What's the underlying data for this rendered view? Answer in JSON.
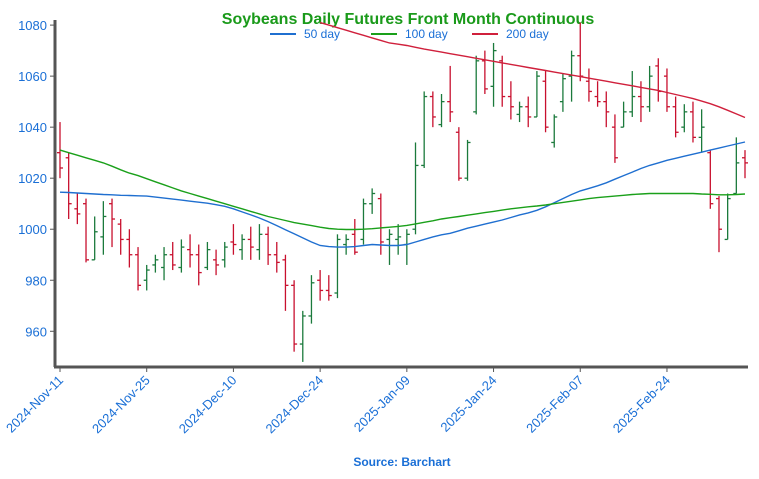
{
  "chart_data": {
    "type": "ohlc",
    "title": "Soybeans Daily Futures Front Month Continuous",
    "source": "Source: Barchart",
    "x": [
      "2024-Nov-11",
      "2024-Nov-12",
      "2024-Nov-13",
      "2024-Nov-14",
      "2024-Nov-15",
      "2024-Nov-18",
      "2024-Nov-19",
      "2024-Nov-20",
      "2024-Nov-21",
      "2024-Nov-22",
      "2024-Nov-25",
      "2024-Nov-26",
      "2024-Nov-27",
      "2024-Nov-29",
      "2024-Dec-02",
      "2024-Dec-03",
      "2024-Dec-04",
      "2024-Dec-05",
      "2024-Dec-06",
      "2024-Dec-09",
      "2024-Dec-10",
      "2024-Dec-11",
      "2024-Dec-12",
      "2024-Dec-13",
      "2024-Dec-16",
      "2024-Dec-17",
      "2024-Dec-18",
      "2024-Dec-19",
      "2024-Dec-20",
      "2024-Dec-23",
      "2024-Dec-24",
      "2024-Dec-26",
      "2024-Dec-27",
      "2024-Dec-30",
      "2024-Dec-31",
      "2025-Jan-02",
      "2025-Jan-03",
      "2025-Jan-06",
      "2025-Jan-07",
      "2025-Jan-08",
      "2025-Jan-09",
      "2025-Jan-10",
      "2025-Jan-13",
      "2025-Jan-14",
      "2025-Jan-15",
      "2025-Jan-16",
      "2025-Jan-17",
      "2025-Jan-21",
      "2025-Jan-22",
      "2025-Jan-23",
      "2025-Jan-24",
      "2025-Jan-27",
      "2025-Jan-28",
      "2025-Jan-29",
      "2025-Jan-30",
      "2025-Jan-31",
      "2025-Feb-03",
      "2025-Feb-04",
      "2025-Feb-05",
      "2025-Feb-06",
      "2025-Feb-07",
      "2025-Feb-10",
      "2025-Feb-11",
      "2025-Feb-12",
      "2025-Feb-13",
      "2025-Feb-14",
      "2025-Feb-18",
      "2025-Feb-19",
      "2025-Feb-20",
      "2025-Feb-21",
      "2025-Feb-24",
      "2025-Feb-25",
      "2025-Feb-26",
      "2025-Feb-27",
      "2025-Feb-28",
      "2025-Mar-03",
      "2025-Mar-04",
      "2025-Mar-05",
      "2025-Mar-06",
      "2025-Mar-07"
    ],
    "open": [
      1030,
      1028,
      1008,
      1010,
      988,
      997,
      1010,
      1002,
      996,
      990,
      980,
      986,
      985,
      990,
      985,
      992,
      990,
      985,
      988,
      988,
      995,
      992,
      996,
      992,
      998,
      990,
      988,
      978,
      955,
      966,
      980,
      976,
      975,
      994,
      998,
      996,
      1010,
      1012,
      996,
      996,
      994,
      1000,
      1025,
      1052,
      1041,
      1050,
      1038,
      1020,
      1046,
      1066,
      1056,
      1066,
      1052,
      1045,
      1048,
      1044,
      1058,
      1034,
      1050,
      1060,
      1068,
      1058,
      1052,
      1050,
      1040,
      1040,
      1046,
      1052,
      1048,
      1064,
      1060,
      1048,
      1040,
      1046,
      1036,
      1030,
      1012,
      996,
      1014,
      1028
    ],
    "high": [
      1042,
      1030,
      1014,
      1012,
      1005,
      1011,
      1012,
      1004,
      1000,
      993,
      986,
      990,
      993,
      995,
      996,
      998,
      994,
      995,
      992,
      995,
      1002,
      998,
      1001,
      1002,
      1001,
      995,
      990,
      980,
      968,
      982,
      984,
      982,
      998,
      998,
      1004,
      1012,
      1016,
      1014,
      1000,
      1002,
      1000,
      1034,
      1054,
      1054,
      1053,
      1064,
      1040,
      1035,
      1068,
      1070,
      1073,
      1068,
      1058,
      1050,
      1052,
      1062,
      1062,
      1045,
      1061,
      1070,
      1081,
      1063,
      1058,
      1054,
      1045,
      1050,
      1062,
      1058,
      1064,
      1067,
      1063,
      1052,
      1049,
      1050,
      1047,
      1031,
      1013,
      1014,
      1036,
      1031
    ],
    "low": [
      1020,
      1004,
      1002,
      987,
      988,
      990,
      993,
      990,
      985,
      976,
      976,
      983,
      980,
      984,
      983,
      985,
      978,
      984,
      982,
      985,
      990,
      988,
      988,
      988,
      986,
      983,
      968,
      952,
      948,
      963,
      972,
      972,
      973,
      990,
      990,
      994,
      1006,
      990,
      986,
      990,
      986,
      998,
      1024,
      1040,
      1040,
      1042,
      1019,
      1019,
      1045,
      1053,
      1048,
      1048,
      1043,
      1042,
      1040,
      1044,
      1038,
      1032,
      1046,
      1050,
      1058,
      1050,
      1048,
      1040,
      1026,
      1040,
      1044,
      1042,
      1046,
      1050,
      1046,
      1036,
      1038,
      1034,
      1030,
      1008,
      991,
      996,
      1014,
      1020
    ],
    "close": [
      1024,
      1010,
      1006,
      988,
      999,
      1005,
      1004,
      996,
      990,
      978,
      984,
      988,
      990,
      986,
      993,
      990,
      983,
      992,
      986,
      993,
      994,
      996,
      993,
      998,
      990,
      987,
      978,
      955,
      966,
      979,
      976,
      974,
      996,
      996,
      991,
      1010,
      1014,
      995,
      998,
      997,
      998,
      1025,
      1052,
      1044,
      1050,
      1046,
      1020,
      1034,
      1066,
      1055,
      1070,
      1052,
      1048,
      1048,
      1044,
      1060,
      1040,
      1044,
      1059,
      1068,
      1060,
      1054,
      1050,
      1046,
      1028,
      1046,
      1052,
      1048,
      1060,
      1054,
      1048,
      1038,
      1046,
      1036,
      1040,
      1010,
      1000,
      1012,
      1026,
      1026
    ],
    "up_color": "#1b7a3c",
    "down_color": "#c8102e",
    "series": [
      {
        "name": "50 day",
        "color": "#1f6fd0",
        "values": [
          1014.5,
          1014.4,
          1014.2,
          1014,
          1013.8,
          1013.6,
          1013.5,
          1013.3,
          1013.2,
          1013.1,
          1013,
          1012.6,
          1012.2,
          1011.8,
          1011.4,
          1011,
          1010.6,
          1010.2,
          1009.6,
          1009,
          1008,
          1006.8,
          1005.6,
          1004.4,
          1003,
          1001.4,
          999.8,
          998.2,
          996.6,
          995,
          993.6,
          993.2,
          993,
          993,
          993.2,
          993.6,
          994,
          993.8,
          993.6,
          993.6,
          994,
          995,
          996,
          997,
          997.8,
          998.4,
          999.4,
          1000.4,
          1001.2,
          1002,
          1002.8,
          1003.6,
          1004.6,
          1005.6,
          1006.4,
          1007.4,
          1008.8,
          1010.4,
          1012,
          1013.6,
          1015,
          1016,
          1017,
          1018.2,
          1019.6,
          1021,
          1022.4,
          1023.8,
          1025,
          1026,
          1027,
          1027.8,
          1028.6,
          1029.4,
          1030.2,
          1031,
          1031.8,
          1032.6,
          1033.4,
          1034.2
        ]
      },
      {
        "name": "100 day",
        "color": "#1aa01a",
        "values": [
          1031,
          1030,
          1029,
          1028,
          1027,
          1026,
          1024.7,
          1023.3,
          1022,
          1021,
          1019.8,
          1018.6,
          1017.4,
          1016.2,
          1015,
          1014,
          1013,
          1012,
          1011,
          1010,
          1009,
          1008,
          1007,
          1006,
          1005,
          1004.2,
          1003.4,
          1002.6,
          1002,
          1001.4,
          1000.8,
          1000.3,
          1000,
          999.9,
          999.9,
          1000,
          1000.2,
          1000.5,
          1000.8,
          1001.1,
          1001.5,
          1002.1,
          1002.7,
          1003.3,
          1004,
          1004.5,
          1005,
          1005.5,
          1006,
          1006.5,
          1007,
          1007.5,
          1008,
          1008.4,
          1008.8,
          1009.1,
          1009.5,
          1010,
          1010.5,
          1011,
          1011.5,
          1012,
          1012.4,
          1012.7,
          1013,
          1013.3,
          1013.6,
          1013.8,
          1014,
          1014,
          1014,
          1014,
          1014,
          1014,
          1013.8,
          1013.7,
          1013.5,
          1013.5,
          1013.6,
          1013.8
        ]
      },
      {
        "name": "200 day",
        "color": "#d0203c",
        "values": [
          null,
          null,
          null,
          null,
          null,
          null,
          null,
          null,
          null,
          null,
          null,
          null,
          null,
          null,
          null,
          null,
          null,
          null,
          null,
          null,
          null,
          null,
          null,
          null,
          null,
          null,
          null,
          null,
          null,
          null,
          1081,
          1080,
          1079,
          1078,
          1077,
          1076,
          1075,
          1074,
          1073,
          1072.5,
          1072,
          1071.3,
          1070.6,
          1070,
          1069.4,
          1068.8,
          1068.2,
          1067.6,
          1067,
          1066.4,
          1065.8,
          1065.2,
          1064.6,
          1064,
          1063.4,
          1062.8,
          1062.2,
          1061.6,
          1061,
          1060.4,
          1059.8,
          1059.2,
          1058.6,
          1058,
          1057.4,
          1056.8,
          1056.2,
          1055.6,
          1055,
          1054.4,
          1053.6,
          1052.8,
          1052,
          1051.2,
          1050.2,
          1049.2,
          1048,
          1046.6,
          1045.2,
          1043.8
        ]
      }
    ],
    "ylim": [
      946,
      1082
    ],
    "yticks": [
      960,
      980,
      1000,
      1020,
      1040,
      1060,
      1080
    ],
    "xticks": [
      "2024-Nov-11",
      "2024-Nov-25",
      "2024-Dec-10",
      "2024-Dec-24",
      "2025-Jan-09",
      "2025-Jan-24",
      "2025-Feb-07",
      "2025-Feb-24"
    ]
  }
}
